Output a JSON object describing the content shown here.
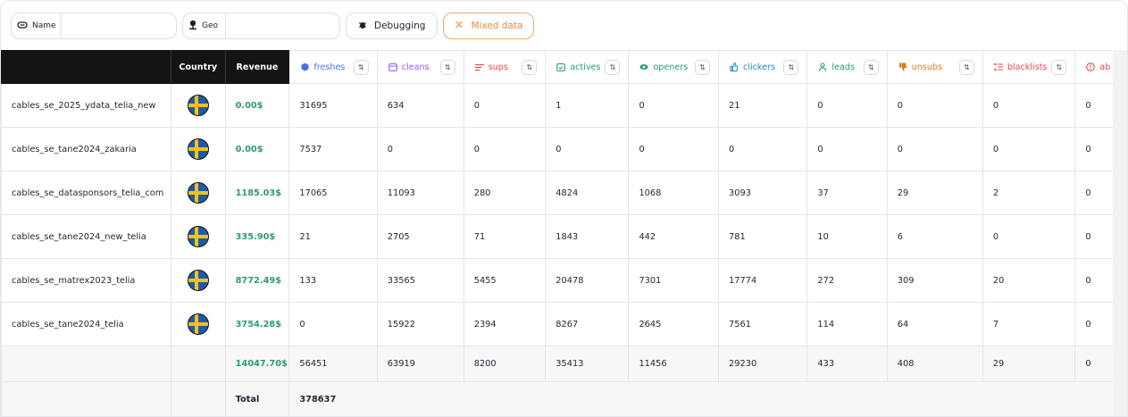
{
  "filters": {
    "name_label": "Name",
    "geo_label": "Geo",
    "debug_label": "Debugging",
    "mixed_label": "Mixed data"
  },
  "header": {
    "country": "Country",
    "revenue": "Revenue",
    "metrics": [
      {
        "label": "freshes",
        "color": "#4a6cf7",
        "icon": "cube-icon"
      },
      {
        "label": "cleans",
        "color": "#8b5cf6",
        "icon": "calendar-icon"
      },
      {
        "label": "sups",
        "color": "#e5484d",
        "icon": "list-icon"
      },
      {
        "label": "actives",
        "color": "#22a06b",
        "icon": "calendar-check-icon"
      },
      {
        "label": "openers",
        "color": "#22a06b",
        "icon": "eye-icon"
      },
      {
        "label": "clickers",
        "color": "#1d8ad8",
        "icon": "thumbs-up-icon"
      },
      {
        "label": "leads",
        "color": "#22a06b",
        "icon": "users-icon"
      },
      {
        "label": "unsubs",
        "color": "#e0751c",
        "icon": "thumbs-down-icon"
      },
      {
        "label": "blacklists",
        "color": "#e5484d",
        "icon": "list-x-icon"
      },
      {
        "label": "ab",
        "color": "#e5484d",
        "icon": "alert-icon"
      }
    ],
    "sort_glyph": "⇅"
  },
  "rows": [
    {
      "name": "cables_se_2025_ydata_telia_new",
      "revenue": "0.00$",
      "values": [
        "31695",
        "634",
        "0",
        "1",
        "0",
        "21",
        "0",
        "0",
        "0",
        "0"
      ]
    },
    {
      "name": "cables_se_tane2024_zakaria",
      "revenue": "0.00$",
      "values": [
        "7537",
        "0",
        "0",
        "0",
        "0",
        "0",
        "0",
        "0",
        "0",
        "0"
      ]
    },
    {
      "name": "cables_se_datasponsors_telia_com",
      "revenue": "1185.03$",
      "values": [
        "17065",
        "11093",
        "280",
        "4824",
        "1068",
        "3093",
        "37",
        "29",
        "2",
        "0"
      ]
    },
    {
      "name": "cables_se_tane2024_new_telia",
      "revenue": "335.90$",
      "values": [
        "21",
        "2705",
        "71",
        "1843",
        "442",
        "781",
        "10",
        "6",
        "0",
        "0"
      ]
    },
    {
      "name": "cables_se_matrex2023_telia",
      "revenue": "8772.49$",
      "values": [
        "133",
        "33565",
        "5455",
        "20478",
        "7301",
        "17774",
        "272",
        "309",
        "20",
        "0"
      ]
    },
    {
      "name": "cables_se_tane2024_telia",
      "revenue": "3754.28$",
      "values": [
        "0",
        "15922",
        "2394",
        "8267",
        "2645",
        "7561",
        "114",
        "64",
        "7",
        "0"
      ]
    }
  ],
  "totals": {
    "revenue": "14047.70$",
    "values": [
      "56451",
      "63919",
      "8200",
      "35413",
      "11456",
      "29230",
      "433",
      "408",
      "29",
      "0"
    ]
  },
  "grand": {
    "label": "Total",
    "value": "378637"
  }
}
